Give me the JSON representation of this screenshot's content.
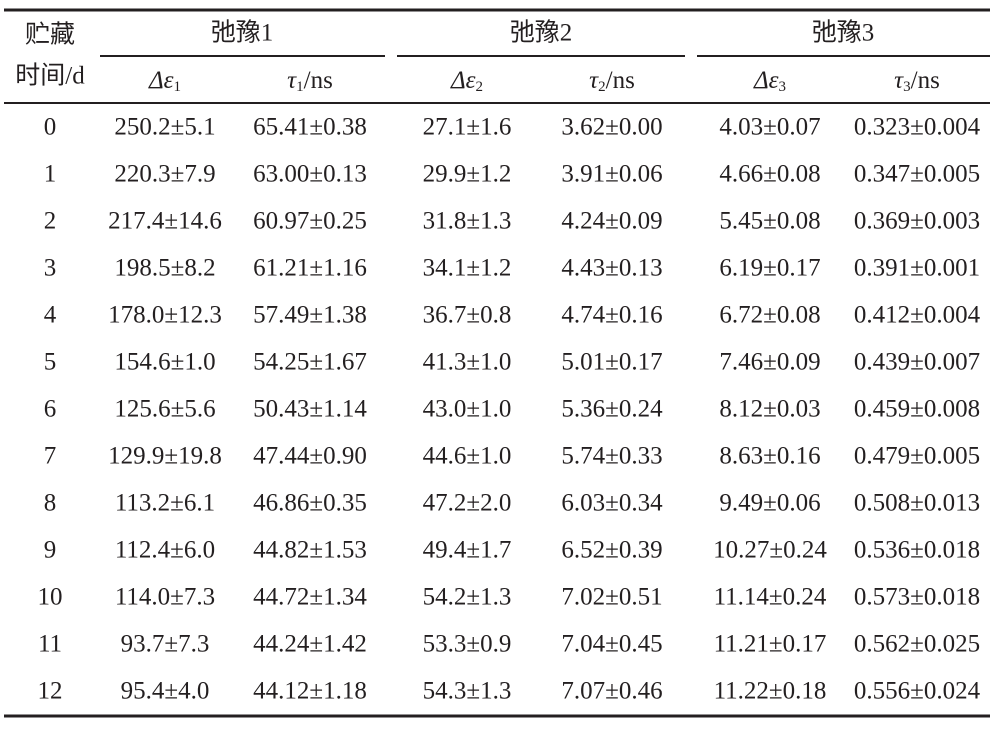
{
  "table": {
    "row_header": [
      "贮藏",
      "时间/d"
    ],
    "groups": [
      "弛豫1",
      "弛豫2",
      "弛豫3"
    ],
    "subheaders": [
      {
        "main": "Δε",
        "sub": "1"
      },
      {
        "main": "τ",
        "sub": "1",
        "suffix": "/ns"
      },
      {
        "main": "Δε",
        "sub": "2"
      },
      {
        "main": "τ",
        "sub": "2",
        "suffix": "/ns"
      },
      {
        "main": "Δε",
        "sub": "3"
      },
      {
        "main": "τ",
        "sub": "3",
        "suffix": "/ns"
      }
    ],
    "rows": [
      [
        "0",
        "250.2±5.1",
        "65.41±0.38",
        "27.1±1.6",
        "3.62±0.00",
        "4.03±0.07",
        "0.323±0.004"
      ],
      [
        "1",
        "220.3±7.9",
        "63.00±0.13",
        "29.9±1.2",
        "3.91±0.06",
        "4.66±0.08",
        "0.347±0.005"
      ],
      [
        "2",
        "217.4±14.6",
        "60.97±0.25",
        "31.8±1.3",
        "4.24±0.09",
        "5.45±0.08",
        "0.369±0.003"
      ],
      [
        "3",
        "198.5±8.2",
        "61.21±1.16",
        "34.1±1.2",
        "4.43±0.13",
        "6.19±0.17",
        "0.391±0.001"
      ],
      [
        "4",
        "178.0±12.3",
        "57.49±1.38",
        "36.7±0.8",
        "4.74±0.16",
        "6.72±0.08",
        "0.412±0.004"
      ],
      [
        "5",
        "154.6±1.0",
        "54.25±1.67",
        "41.3±1.0",
        "5.01±0.17",
        "7.46±0.09",
        "0.439±0.007"
      ],
      [
        "6",
        "125.6±5.6",
        "50.43±1.14",
        "43.0±1.0",
        "5.36±0.24",
        "8.12±0.03",
        "0.459±0.008"
      ],
      [
        "7",
        "129.9±19.8",
        "47.44±0.90",
        "44.6±1.0",
        "5.74±0.33",
        "8.63±0.16",
        "0.479±0.005"
      ],
      [
        "8",
        "113.2±6.1",
        "46.86±0.35",
        "47.2±2.0",
        "6.03±0.34",
        "9.49±0.06",
        "0.508±0.013"
      ],
      [
        "9",
        "112.4±6.0",
        "44.82±1.53",
        "49.4±1.7",
        "6.52±0.39",
        "10.27±0.24",
        "0.536±0.018"
      ],
      [
        "10",
        "114.0±7.3",
        "44.72±1.34",
        "54.2±1.3",
        "7.02±0.51",
        "11.14±0.24",
        "0.573±0.018"
      ],
      [
        "11",
        "93.7±7.3",
        "44.24±1.42",
        "53.3±0.9",
        "7.04±0.45",
        "11.21±0.17",
        "0.562±0.025"
      ],
      [
        "12",
        "95.4±4.0",
        "44.12±1.18",
        "54.3±1.3",
        "7.07±0.46",
        "11.22±0.18",
        "0.556±0.024"
      ]
    ]
  }
}
